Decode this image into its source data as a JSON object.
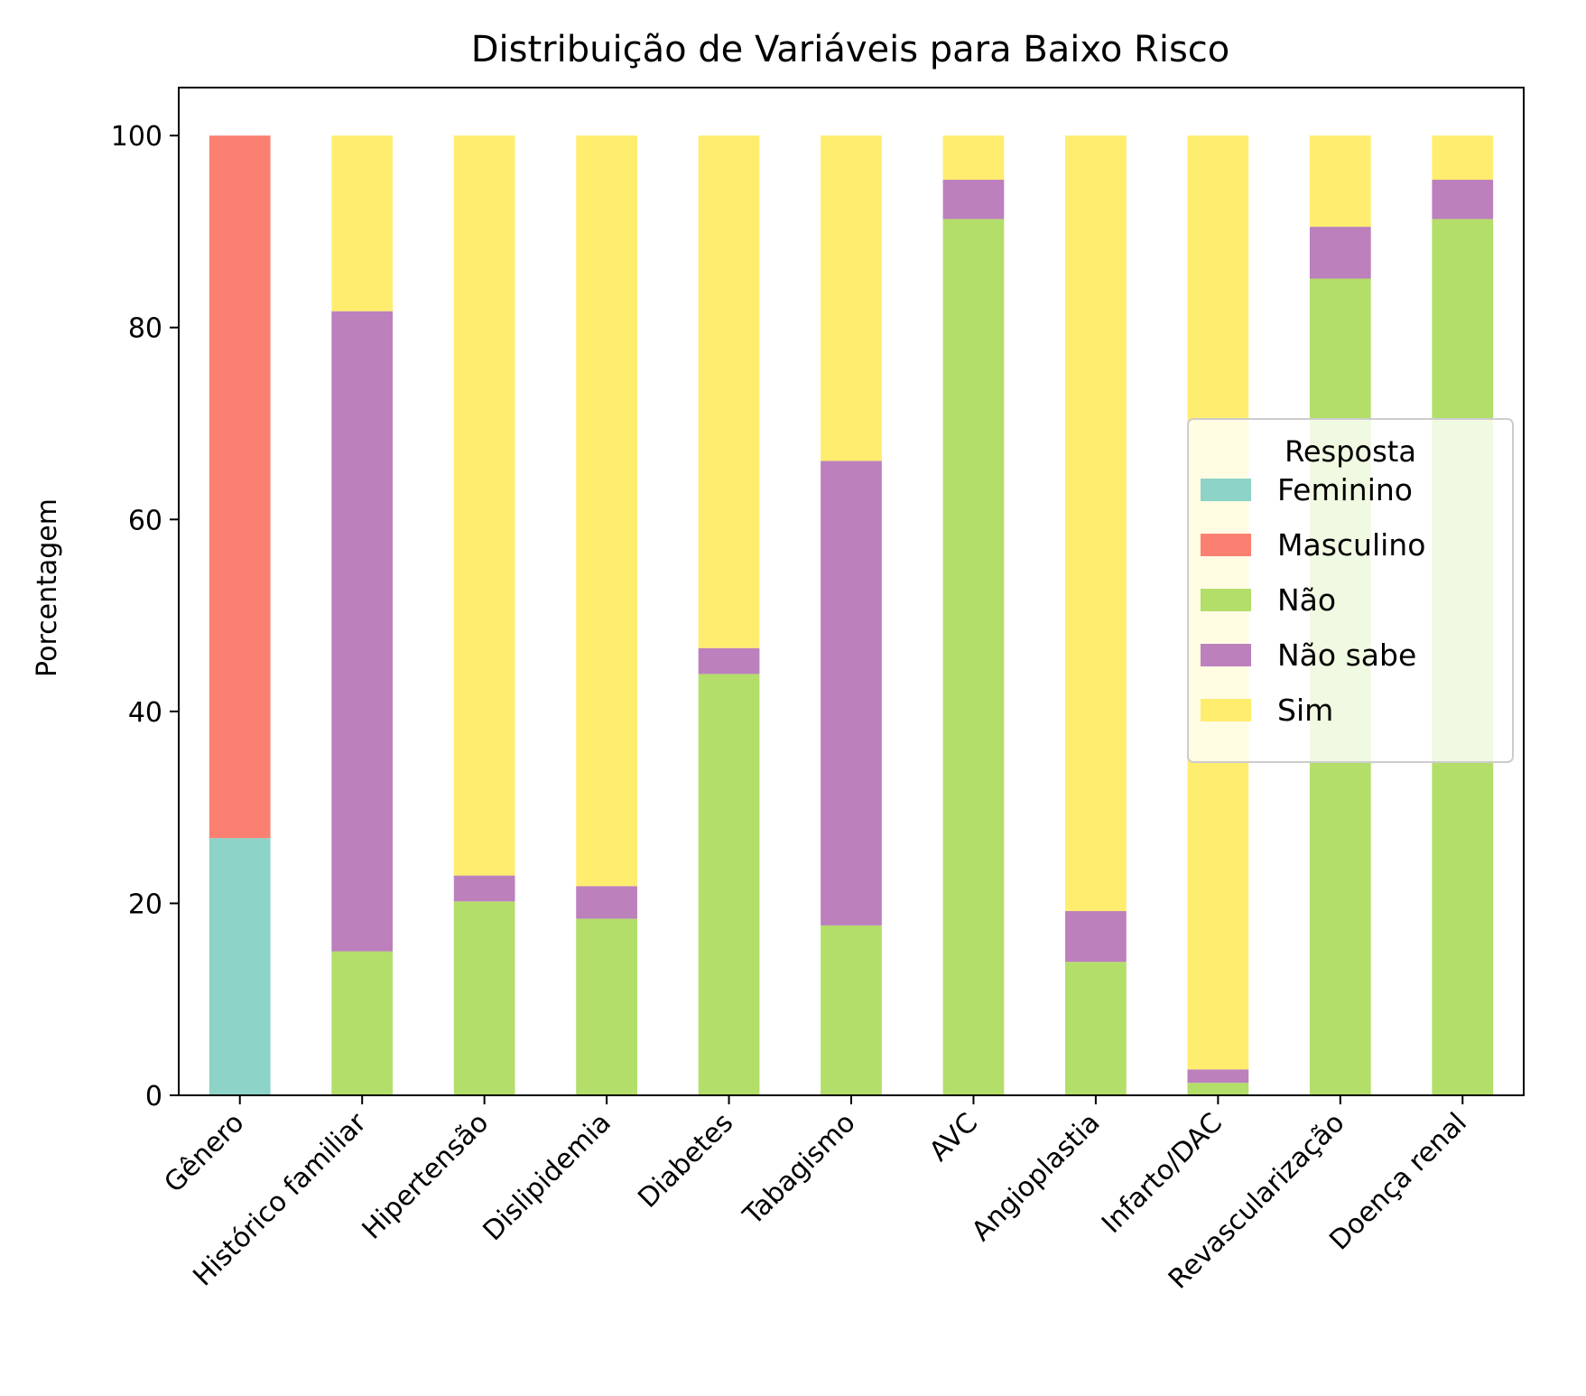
{
  "chart_data": {
    "type": "bar",
    "stacked": true,
    "title": "Distribuição de Variáveis para Baixo Risco",
    "xlabel": "",
    "ylabel": "Porcentagem",
    "ylim": [
      0,
      105
    ],
    "yticks": [
      "0",
      "20",
      "40",
      "60",
      "80",
      "100"
    ],
    "grid": false,
    "categories": [
      "Gênero",
      "Histórico familiar",
      "Hipertensão",
      "Dislipidemia",
      "Diabetes",
      "Tabagismo",
      "AVC",
      "Angioplastia",
      "Infarto/DAC",
      "Revascularização",
      "Doença renal"
    ],
    "series": [
      {
        "name": "Feminino",
        "color": "#8dd3c7",
        "values": [
          26.8,
          0,
          0,
          0,
          0,
          0,
          0,
          0,
          0,
          0,
          0
        ]
      },
      {
        "name": "Masculino",
        "color": "#fb8072",
        "values": [
          73.2,
          0,
          0,
          0,
          0,
          0,
          0,
          0,
          0,
          0,
          0
        ]
      },
      {
        "name": "Não",
        "color": "#b3de69",
        "values": [
          0,
          15.0,
          20.2,
          18.4,
          43.9,
          17.7,
          91.3,
          13.9,
          1.3,
          85.1,
          91.3
        ]
      },
      {
        "name": "Não sabe",
        "color": "#bc80bd",
        "values": [
          0,
          66.7,
          2.7,
          3.4,
          2.7,
          48.4,
          4.1,
          5.3,
          1.4,
          5.4,
          4.1
        ]
      },
      {
        "name": "Sim",
        "color": "#ffed6f",
        "values": [
          0,
          18.3,
          77.1,
          78.2,
          53.4,
          33.9,
          4.6,
          80.8,
          97.3,
          9.5,
          4.6
        ]
      }
    ],
    "legend": {
      "title": "Resposta",
      "position": "center-right"
    }
  }
}
